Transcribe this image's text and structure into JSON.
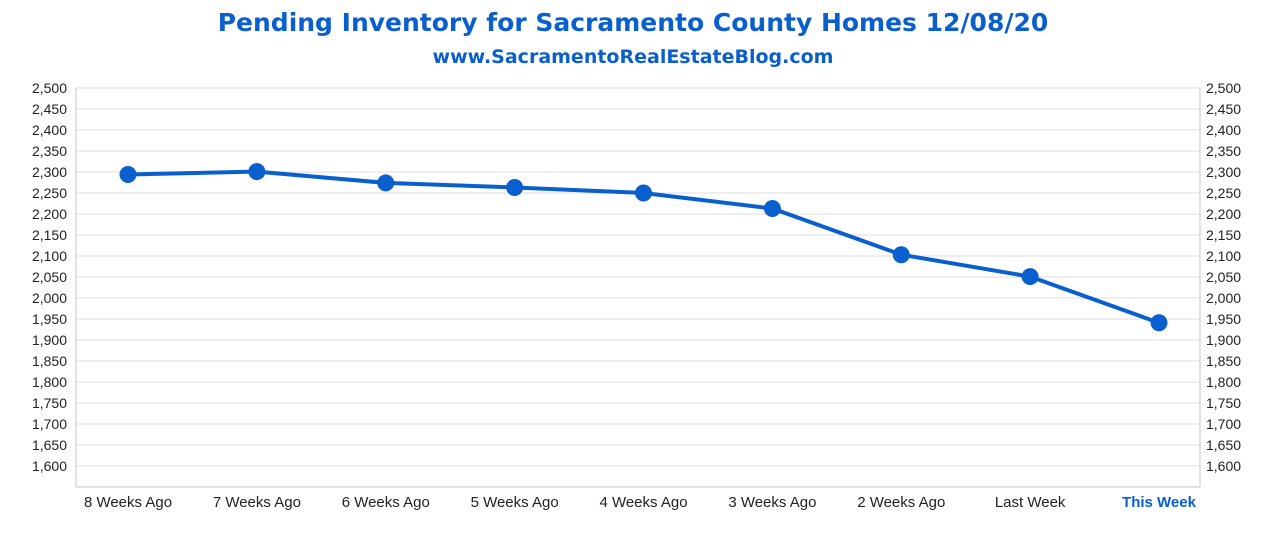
{
  "chart_data": {
    "type": "line",
    "title": "Pending Inventory for Sacramento County Homes 12/08/20",
    "subtitle": "www.SacramentoRealEstateBlog.com",
    "categories": [
      "8 Weeks Ago",
      "7 Weeks Ago",
      "6 Weeks Ago",
      "5 Weeks Ago",
      "4 Weeks Ago",
      "3 Weeks Ago",
      "2 Weeks Ago",
      "Last Week",
      "This Week"
    ],
    "highlight_category": "This Week",
    "series": [
      {
        "name": "Pending Inventory",
        "values": [
          2294,
          2301,
          2274,
          2263,
          2250,
          2213,
          2103,
          2051,
          1941
        ]
      }
    ],
    "ylim": [
      1550,
      2500
    ],
    "yticks": [
      1600,
      1650,
      1700,
      1750,
      1800,
      1850,
      1900,
      1950,
      2000,
      2050,
      2100,
      2150,
      2200,
      2250,
      2300,
      2350,
      2400,
      2450,
      2500
    ],
    "ytick_labels": [
      "1,600",
      "1,650",
      "1,700",
      "1,750",
      "1,800",
      "1,850",
      "1,900",
      "1,950",
      "2,000",
      "2,050",
      "2,100",
      "2,150",
      "2,200",
      "2,250",
      "2,300",
      "2,350",
      "2,400",
      "2,450",
      "2,500"
    ],
    "grid": true,
    "legend": "none",
    "colors": {
      "line": "#0a5fce",
      "title": "#0a5fce",
      "grid": "#e3e3e3",
      "axis": "#cfcfcf"
    }
  }
}
